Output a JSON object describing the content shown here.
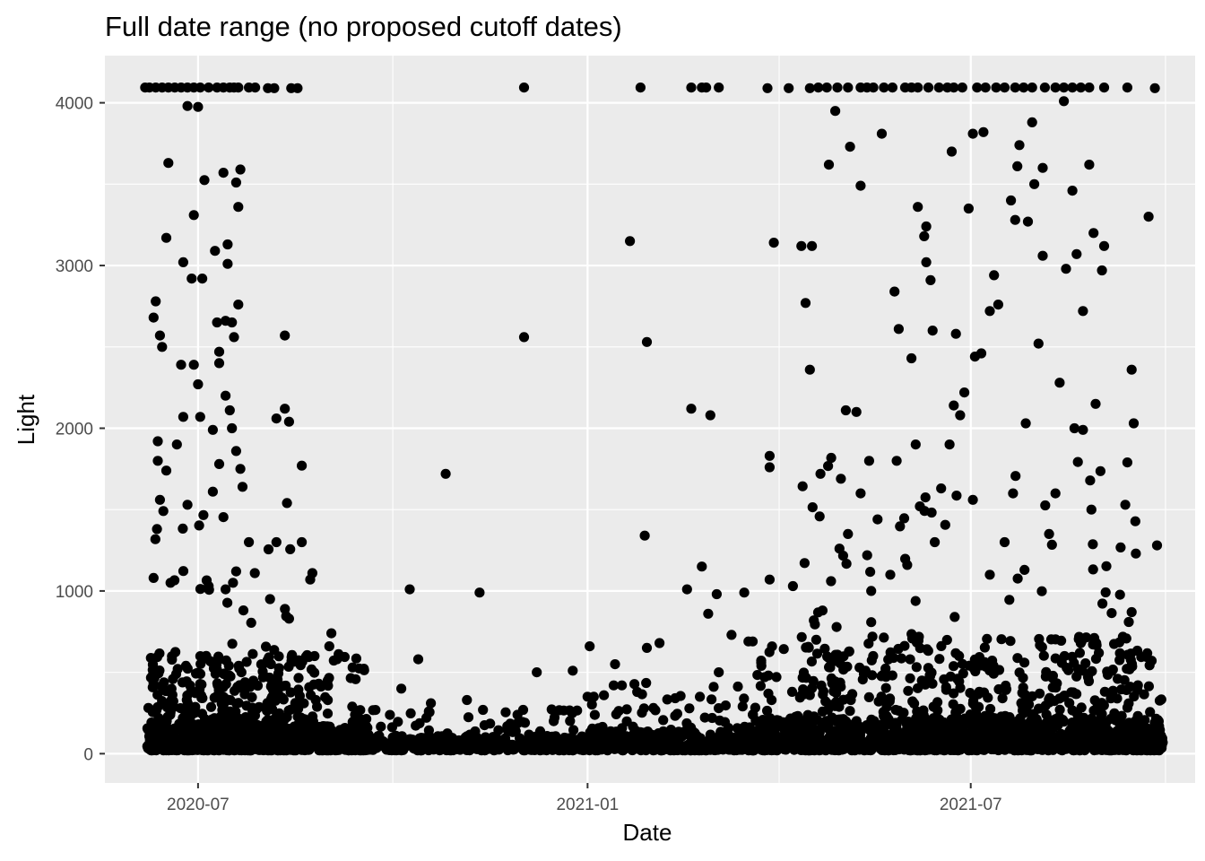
{
  "chart_data": {
    "type": "scatter",
    "title": "Full date range (no proposed cutoff dates)",
    "xlabel": "Date",
    "ylabel": "Light",
    "x_ticks": [
      "2020-07",
      "2021-01",
      "2021-07"
    ],
    "y_ticks": [
      "0",
      "1000",
      "2000",
      "3000",
      "4000"
    ],
    "x_tick_values": [
      "2020-07-01",
      "2021-01-01",
      "2021-07-01"
    ],
    "y_tick_values": [
      0,
      1000,
      2000,
      3000,
      4000
    ],
    "xlim": [
      "2020-05-18",
      "2021-10-15"
    ],
    "ylim": [
      -180,
      4290
    ],
    "grid": true,
    "colors": {
      "panel": "#ebebeb",
      "grid": "#ffffff",
      "point": "#000000",
      "tick": "#333333"
    },
    "series": [
      {
        "name": "Light",
        "points": [
          [
            "2020-06-06",
            4094
          ],
          [
            "2020-06-08",
            4094
          ],
          [
            "2020-06-11",
            4094
          ],
          [
            "2020-06-14",
            4094
          ],
          [
            "2020-06-17",
            4094
          ],
          [
            "2020-06-20",
            4094
          ],
          [
            "2020-06-23",
            4094
          ],
          [
            "2020-06-26",
            4094
          ],
          [
            "2020-06-29",
            4094
          ],
          [
            "2020-07-02",
            4094
          ],
          [
            "2020-07-06",
            4094
          ],
          [
            "2020-07-10",
            4094
          ],
          [
            "2020-07-13",
            4094
          ],
          [
            "2020-07-16",
            4094
          ],
          [
            "2020-07-18",
            4094
          ],
          [
            "2020-07-20",
            4094
          ],
          [
            "2020-07-25",
            4094
          ],
          [
            "2020-07-28",
            4094
          ],
          [
            "2020-08-03",
            4090
          ],
          [
            "2020-08-06",
            4090
          ],
          [
            "2020-08-14",
            4090
          ],
          [
            "2020-08-17",
            4090
          ],
          [
            "2020-12-02",
            4094
          ],
          [
            "2021-01-26",
            4094
          ],
          [
            "2021-02-19",
            4094
          ],
          [
            "2021-02-24",
            4094
          ],
          [
            "2021-02-26",
            4094
          ],
          [
            "2021-03-04",
            4094
          ],
          [
            "2021-03-27",
            4090
          ],
          [
            "2021-04-06",
            4090
          ],
          [
            "2021-04-16",
            4090
          ],
          [
            "2021-04-20",
            4094
          ],
          [
            "2021-04-24",
            4094
          ],
          [
            "2021-04-29",
            4094
          ],
          [
            "2021-05-04",
            4094
          ],
          [
            "2021-05-10",
            4094
          ],
          [
            "2021-05-13",
            4094
          ],
          [
            "2021-05-16",
            4094
          ],
          [
            "2021-05-21",
            4094
          ],
          [
            "2021-05-25",
            4094
          ],
          [
            "2021-05-31",
            4094
          ],
          [
            "2021-06-03",
            4094
          ],
          [
            "2021-06-06",
            4094
          ],
          [
            "2021-06-11",
            4094
          ],
          [
            "2021-06-16",
            4094
          ],
          [
            "2021-06-20",
            4094
          ],
          [
            "2021-06-23",
            4094
          ],
          [
            "2021-06-27",
            4094
          ],
          [
            "2021-07-04",
            4094
          ],
          [
            "2021-07-08",
            4094
          ],
          [
            "2021-07-13",
            4094
          ],
          [
            "2021-07-17",
            4094
          ],
          [
            "2021-07-22",
            4094
          ],
          [
            "2021-07-26",
            4094
          ],
          [
            "2021-07-30",
            4094
          ],
          [
            "2021-08-05",
            4094
          ],
          [
            "2021-08-10",
            4094
          ],
          [
            "2021-08-14",
            4094
          ],
          [
            "2021-08-18",
            4094
          ],
          [
            "2021-08-22",
            4094
          ],
          [
            "2021-08-26",
            4094
          ],
          [
            "2021-09-02",
            4094
          ],
          [
            "2021-09-13",
            4094
          ],
          [
            "2021-09-26",
            4090
          ],
          [
            "2020-06-26",
            3980
          ],
          [
            "2020-07-01",
            3975
          ],
          [
            "2020-06-17",
            3630
          ],
          [
            "2020-07-04",
            3525
          ],
          [
            "2020-07-13",
            3570
          ],
          [
            "2020-07-19",
            3510
          ],
          [
            "2020-07-21",
            3590
          ],
          [
            "2020-07-20",
            3360
          ],
          [
            "2020-07-15",
            3130
          ],
          [
            "2020-07-15",
            3010
          ],
          [
            "2020-06-29",
            3310
          ],
          [
            "2020-06-16",
            3170
          ],
          [
            "2020-06-24",
            3020
          ],
          [
            "2020-07-09",
            3090
          ],
          [
            "2020-06-28",
            2920
          ],
          [
            "2020-07-03",
            2920
          ],
          [
            "2020-06-11",
            2780
          ],
          [
            "2020-06-10",
            2680
          ],
          [
            "2020-06-13",
            2570
          ],
          [
            "2020-06-14",
            2500
          ],
          [
            "2020-07-10",
            2650
          ],
          [
            "2020-07-14",
            2660
          ],
          [
            "2020-07-17",
            2650
          ],
          [
            "2020-07-20",
            2760
          ],
          [
            "2020-07-18",
            2560
          ],
          [
            "2020-08-11",
            2570
          ],
          [
            "2020-06-23",
            2390
          ],
          [
            "2020-06-29",
            2390
          ],
          [
            "2020-07-11",
            2470
          ],
          [
            "2020-07-11",
            2400
          ],
          [
            "2020-07-01",
            2270
          ],
          [
            "2020-07-14",
            2200
          ],
          [
            "2020-07-16",
            2110
          ],
          [
            "2020-07-17",
            2000
          ],
          [
            "2020-07-08",
            1990
          ],
          [
            "2020-07-02",
            2070
          ],
          [
            "2020-06-24",
            2070
          ],
          [
            "2020-08-07",
            2060
          ],
          [
            "2020-08-11",
            2120
          ],
          [
            "2020-08-13",
            2040
          ],
          [
            "2020-06-12",
            1920
          ],
          [
            "2020-06-21",
            1900
          ],
          [
            "2020-07-11",
            1780
          ],
          [
            "2020-07-21",
            1750
          ],
          [
            "2020-07-19",
            1860
          ],
          [
            "2020-08-19",
            1770
          ],
          [
            "2020-06-12",
            1800
          ],
          [
            "2020-06-16",
            1740
          ],
          [
            "2020-06-13",
            1560
          ],
          [
            "2020-06-26",
            1530
          ],
          [
            "2020-07-08",
            1610
          ],
          [
            "2020-07-22",
            1640
          ],
          [
            "2020-08-12",
            1540
          ],
          [
            "2020-08-19",
            1300
          ],
          [
            "2020-08-24",
            1110
          ],
          [
            "2020-07-25",
            1300
          ],
          [
            "2020-08-07",
            1300
          ],
          [
            "2020-06-10",
            1080
          ],
          [
            "2020-06-18",
            1050
          ],
          [
            "2020-07-06",
            1030
          ],
          [
            "2020-07-14",
            1010
          ],
          [
            "2020-07-19",
            1120
          ],
          [
            "2020-08-23",
            1070
          ],
          [
            "2020-08-04",
            950
          ],
          [
            "2020-08-13",
            830
          ],
          [
            "2020-08-25",
            600
          ],
          [
            "2020-09-02",
            740
          ],
          [
            "2020-09-01",
            660
          ],
          [
            "2020-09-12",
            530
          ],
          [
            "2020-10-09",
            1010
          ],
          [
            "2020-10-13",
            580
          ],
          [
            "2020-10-05",
            400
          ],
          [
            "2020-10-19",
            310
          ],
          [
            "2020-10-18",
            260
          ],
          [
            "2020-10-26",
            1720
          ],
          [
            "2020-11-11",
            990
          ],
          [
            "2020-11-05",
            330
          ],
          [
            "2020-12-02",
            2560
          ],
          [
            "2020-12-08",
            500
          ],
          [
            "2020-12-16",
            200
          ],
          [
            "2020-12-25",
            510
          ],
          [
            "2021-01-02",
            660
          ],
          [
            "2021-01-01",
            350
          ],
          [
            "2021-01-21",
            3150
          ],
          [
            "2021-01-14",
            550
          ],
          [
            "2021-01-29",
            2530
          ],
          [
            "2021-01-28",
            1340
          ],
          [
            "2021-01-29",
            650
          ],
          [
            "2021-02-04",
            680
          ],
          [
            "2021-02-17",
            1010
          ],
          [
            "2021-02-19",
            2120
          ],
          [
            "2021-02-24",
            1150
          ],
          [
            "2021-02-28",
            2080
          ],
          [
            "2021-02-27",
            860
          ],
          [
            "2021-03-03",
            980
          ],
          [
            "2021-03-16",
            990
          ],
          [
            "2021-03-18",
            690
          ],
          [
            "2021-03-20",
            690
          ],
          [
            "2021-03-28",
            1830
          ],
          [
            "2021-03-28",
            1760
          ],
          [
            "2021-03-30",
            3140
          ],
          [
            "2021-03-28",
            1070
          ],
          [
            "2021-04-12",
            3120
          ],
          [
            "2021-04-14",
            2770
          ],
          [
            "2021-04-17",
            3120
          ],
          [
            "2021-04-16",
            2360
          ],
          [
            "2021-04-21",
            1720
          ],
          [
            "2021-04-25",
            3620
          ],
          [
            "2021-04-28",
            3950
          ],
          [
            "2021-05-05",
            3730
          ],
          [
            "2021-05-10",
            3490
          ],
          [
            "2021-05-03",
            2110
          ],
          [
            "2021-05-08",
            2100
          ],
          [
            "2021-05-14",
            1800
          ],
          [
            "2021-05-20",
            3810
          ],
          [
            "2021-05-26",
            2840
          ],
          [
            "2021-05-28",
            2610
          ],
          [
            "2021-06-03",
            2430
          ],
          [
            "2021-06-06",
            3360
          ],
          [
            "2021-06-10",
            3240
          ],
          [
            "2021-06-09",
            3180
          ],
          [
            "2021-06-10",
            3020
          ],
          [
            "2021-06-12",
            2910
          ],
          [
            "2021-06-13",
            2600
          ],
          [
            "2021-06-22",
            3700
          ],
          [
            "2021-06-30",
            3350
          ],
          [
            "2021-06-24",
            2580
          ],
          [
            "2021-07-02",
            3810
          ],
          [
            "2021-07-07",
            3820
          ],
          [
            "2021-07-12",
            2940
          ],
          [
            "2021-07-10",
            2720
          ],
          [
            "2021-07-14",
            2760
          ],
          [
            "2021-07-20",
            3400
          ],
          [
            "2021-07-24",
            3740
          ],
          [
            "2021-07-23",
            3610
          ],
          [
            "2021-07-22",
            3280
          ],
          [
            "2021-07-28",
            3270
          ],
          [
            "2021-07-30",
            3880
          ],
          [
            "2021-07-31",
            3500
          ],
          [
            "2021-08-04",
            3600
          ],
          [
            "2021-08-04",
            3060
          ],
          [
            "2021-08-15",
            2980
          ],
          [
            "2021-08-18",
            3460
          ],
          [
            "2021-08-20",
            3070
          ],
          [
            "2021-08-23",
            2720
          ],
          [
            "2021-08-26",
            3620
          ],
          [
            "2021-08-28",
            3200
          ],
          [
            "2021-09-01",
            2970
          ],
          [
            "2021-09-02",
            3120
          ],
          [
            "2021-08-14",
            4010
          ],
          [
            "2021-09-23",
            3300
          ],
          [
            "2021-09-27",
            1280
          ],
          [
            "2021-09-16",
            2030
          ],
          [
            "2021-09-15",
            2360
          ],
          [
            "2021-09-13",
            1790
          ],
          [
            "2021-09-12",
            1530
          ],
          [
            "2021-09-17",
            1230
          ],
          [
            "2021-09-15",
            870
          ],
          [
            "2021-09-18",
            420
          ],
          [
            "2021-08-29",
            2150
          ],
          [
            "2021-08-27",
            1500
          ],
          [
            "2021-08-23",
            1990
          ],
          [
            "2021-08-19",
            2000
          ],
          [
            "2021-08-12",
            2280
          ],
          [
            "2021-08-10",
            1600
          ],
          [
            "2021-08-07",
            1350
          ],
          [
            "2021-08-02",
            2520
          ],
          [
            "2021-07-27",
            2030
          ],
          [
            "2021-07-21",
            1600
          ],
          [
            "2021-07-17",
            1300
          ],
          [
            "2021-07-10",
            1100
          ],
          [
            "2021-07-06",
            2460
          ],
          [
            "2021-07-03",
            2440
          ],
          [
            "2021-07-02",
            1560
          ],
          [
            "2021-06-28",
            2220
          ],
          [
            "2021-06-26",
            2080
          ],
          [
            "2021-06-23",
            2140
          ],
          [
            "2021-06-21",
            1900
          ],
          [
            "2021-06-17",
            1630
          ],
          [
            "2021-06-14",
            1300
          ],
          [
            "2021-06-07",
            1520
          ],
          [
            "2021-06-05",
            1900
          ],
          [
            "2021-06-01",
            1160
          ],
          [
            "2021-05-27",
            1800
          ],
          [
            "2021-05-24",
            1100
          ],
          [
            "2021-05-18",
            1440
          ],
          [
            "2021-05-15",
            1000
          ],
          [
            "2021-05-10",
            1600
          ],
          [
            "2021-05-04",
            1350
          ],
          [
            "2021-04-30",
            1260
          ],
          [
            "2021-04-26",
            1060
          ],
          [
            "2021-04-22",
            880
          ],
          [
            "2021-04-19",
            700
          ],
          [
            "2021-04-08",
            1030
          ],
          [
            "2021-03-24",
            560
          ],
          [
            "2021-03-10",
            730
          ],
          [
            "2021-03-04",
            500
          ]
        ],
        "cloud": [
          {
            "from": "2020-06-07",
            "to": "2020-09-20",
            "max": 600,
            "count": 900,
            "dense_max": 150
          },
          {
            "from": "2020-06-07",
            "to": "2020-08-25",
            "max": 1500,
            "count": 320,
            "dense_max": 600
          },
          {
            "from": "2020-09-15",
            "to": "2020-12-31",
            "max": 260,
            "count": 420,
            "dense_max": 90
          },
          {
            "from": "2021-01-01",
            "to": "2021-03-31",
            "max": 420,
            "count": 420,
            "dense_max": 120
          },
          {
            "from": "2021-03-20",
            "to": "2021-09-30",
            "max": 700,
            "count": 1100,
            "dense_max": 200
          },
          {
            "from": "2021-04-10",
            "to": "2021-09-25",
            "max": 1800,
            "count": 420,
            "dense_max": 700
          }
        ]
      }
    ]
  }
}
